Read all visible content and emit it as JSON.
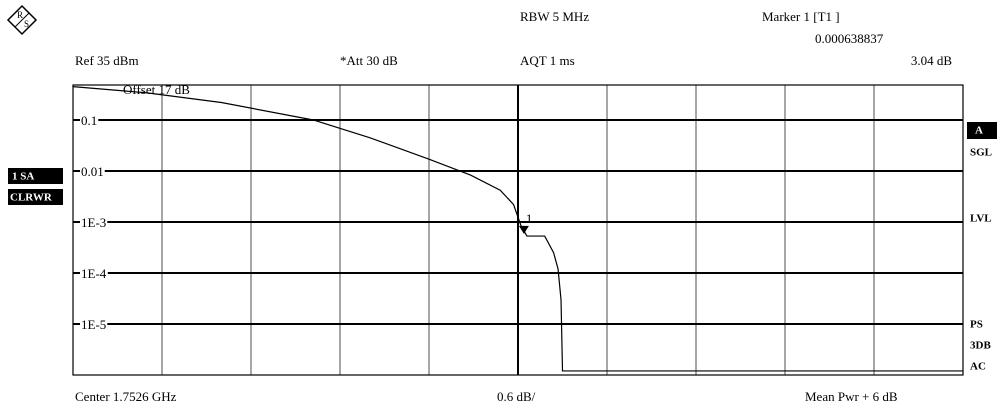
{
  "logo": [
    "R",
    "S"
  ],
  "header": {
    "rbw": "RBW 5 MHz",
    "marker_title": "Marker 1 [T1 ]",
    "ref": "Ref 35 dBm",
    "att": "*Att 30 dB",
    "aqt": "AQT 1 ms"
  },
  "left_panel": {
    "trace": "1 SA",
    "mode": "CLRWR"
  },
  "right_panel": [
    "A",
    "SGL",
    "LVL",
    "PS",
    "3DB",
    "AC"
  ],
  "footer": {
    "center": "Center 1.7526 GHz",
    "scale": "0.6 dB/",
    "mean": "Mean Pwr + 6 dB"
  },
  "chart_data": {
    "type": "line",
    "log_y": true,
    "annotation": "Offset 17 dB",
    "x": [
      0,
      0.5,
      1.0,
      1.62,
      2.0,
      2.4,
      2.68,
      2.88,
      2.97,
      3.02,
      3.06,
      3.18,
      3.24,
      3.27,
      3.29,
      3.3,
      6.0
    ],
    "values": [
      0.45,
      0.34,
      0.22,
      0.1,
      0.045,
      0.017,
      0.0083,
      0.0042,
      0.0022,
      0.00085,
      0.00053,
      0.00053,
      0.00025,
      0.00012,
      3e-05,
      1.2e-06,
      1.2e-06
    ],
    "color": "#000000",
    "xlim": [
      0,
      6
    ],
    "ylim": [
      1e-06,
      0.485
    ],
    "yticks": [
      0.1,
      0.01,
      {
        "value": 0.001,
        "label": "1E-3"
      },
      {
        "value": 0.0001,
        "label": "1E-4"
      },
      {
        "value": 1e-05,
        "label": "1E-5"
      }
    ],
    "grid": true,
    "marker": {
      "label": "1",
      "x": 3.04,
      "value": 0.000638837,
      "x_label": "3.04 dB",
      "value_label": "0.000638837"
    }
  }
}
